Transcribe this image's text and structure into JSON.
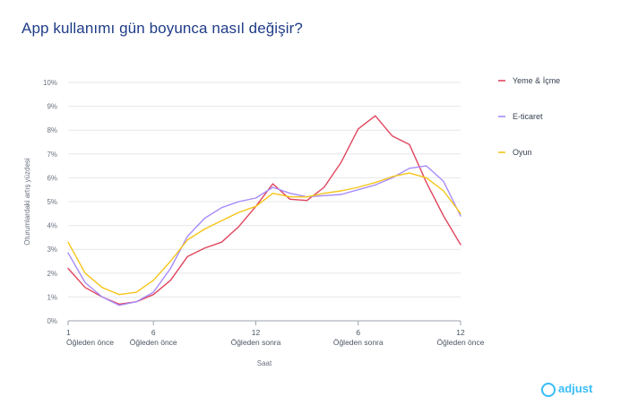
{
  "title": "App kullanımı gün boyunca nasıl değişir?",
  "logo_text": "adjust",
  "chart_data": {
    "type": "line",
    "title": "App kullanımı gün boyunca nasıl değişir?",
    "xlabel": "Saat",
    "ylabel": "Oturumlardaki artış yüzdesi",
    "ylim": [
      0,
      10
    ],
    "y_ticks": [
      "0%",
      "1%",
      "2%",
      "3%",
      "4%",
      "5%",
      "6%",
      "7%",
      "8%",
      "9%",
      "10%"
    ],
    "x_ticks": [
      {
        "hour": 1,
        "num": "1",
        "period": "Öğleden önce"
      },
      {
        "hour": 6,
        "num": "6",
        "period": "Öğleden önce"
      },
      {
        "hour": 12,
        "num": "12",
        "period": "Öğleden sonra"
      },
      {
        "hour": 18,
        "num": "6",
        "period": "Öğleden sonra"
      },
      {
        "hour": 24,
        "num": "12",
        "period": "Öğleden önce"
      }
    ],
    "x": [
      1,
      2,
      3,
      4,
      5,
      6,
      7,
      8,
      9,
      10,
      11,
      12,
      13,
      14,
      15,
      16,
      17,
      18,
      19,
      20,
      21,
      22,
      23,
      24
    ],
    "legend_position": "right",
    "grid": true,
    "series": [
      {
        "name": "Yeme & İçme",
        "color": "#e0465e",
        "values": [
          2.2,
          1.4,
          1.0,
          0.7,
          0.8,
          1.1,
          1.7,
          2.7,
          3.05,
          3.3,
          3.95,
          4.8,
          5.75,
          5.1,
          5.05,
          5.6,
          6.65,
          8.05,
          8.6,
          7.75,
          7.4,
          5.8,
          4.4,
          3.2
        ]
      },
      {
        "name": "E-ticaret",
        "color": "#a78bfa",
        "values": [
          2.85,
          1.6,
          1.0,
          0.65,
          0.8,
          1.2,
          2.2,
          3.55,
          4.3,
          4.75,
          5.0,
          5.15,
          5.6,
          5.35,
          5.2,
          5.25,
          5.3,
          5.5,
          5.7,
          6.0,
          6.4,
          6.5,
          5.85,
          4.4
        ]
      },
      {
        "name": "Oyun",
        "color": "#f5c518",
        "values": [
          3.3,
          2.0,
          1.4,
          1.1,
          1.2,
          1.7,
          2.5,
          3.4,
          3.85,
          4.2,
          4.55,
          4.8,
          5.35,
          5.2,
          5.2,
          5.35,
          5.45,
          5.6,
          5.8,
          6.05,
          6.2,
          6.0,
          5.45,
          4.5
        ]
      }
    ]
  }
}
